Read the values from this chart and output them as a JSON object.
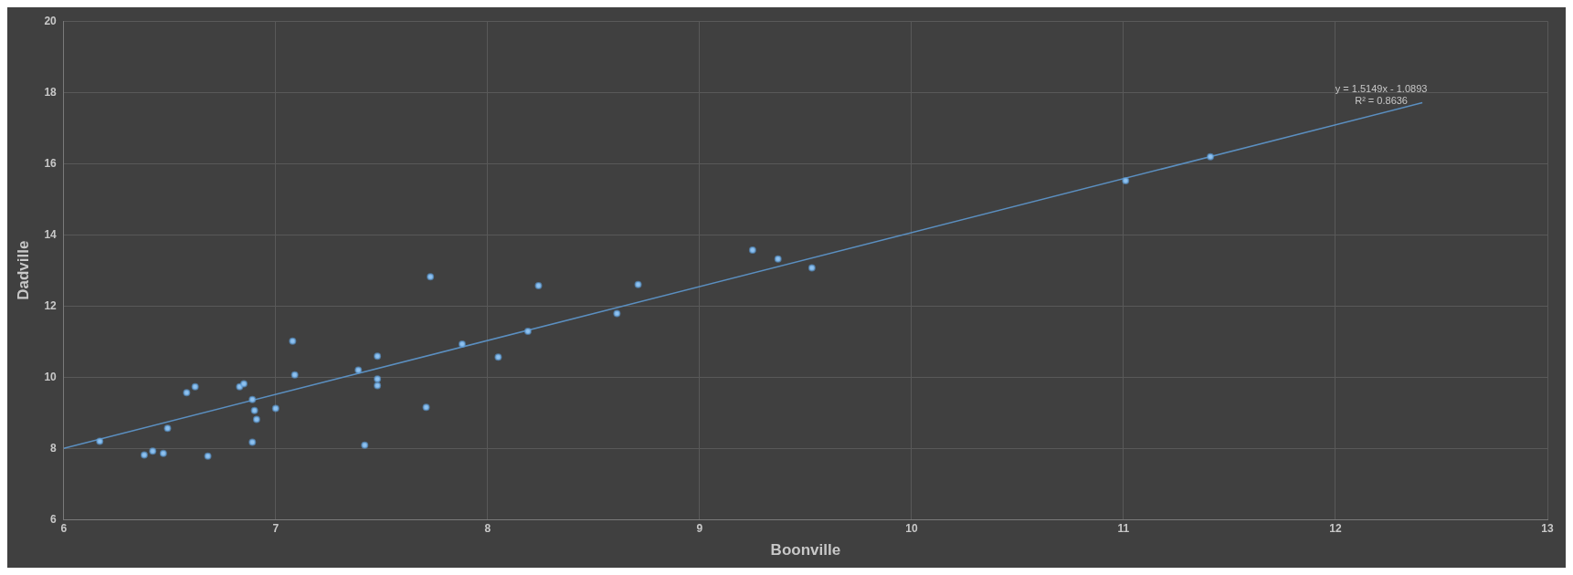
{
  "chart_data": {
    "type": "scatter",
    "xlabel": "Boonville",
    "ylabel": "Dadville",
    "xlim": [
      6,
      13
    ],
    "xticks": [
      6,
      7,
      8,
      9,
      10,
      11,
      12,
      13
    ],
    "ylim": [
      6,
      20
    ],
    "yticks": [
      6,
      8,
      10,
      12,
      14,
      16,
      18,
      20
    ],
    "grid": true,
    "legend": false,
    "marker": "circle",
    "annotations": [
      "y = 1.5149x - 1.0893",
      "R² = 0.8636"
    ],
    "series": [
      {
        "type": "scatter",
        "color": "#8fc1ee",
        "x": [
          6.17,
          6.38,
          6.42,
          6.47,
          6.49,
          6.58,
          6.62,
          6.68,
          6.83,
          6.85,
          6.89,
          6.9,
          6.91,
          6.89,
          7.0,
          7.08,
          7.09,
          7.39,
          7.42,
          7.48,
          7.48,
          7.48,
          7.71,
          7.73,
          7.88,
          8.05,
          8.19,
          8.24,
          8.61,
          8.71,
          9.25,
          9.37,
          9.53,
          11.01,
          11.41
        ],
        "values": [
          8.2,
          7.81,
          7.92,
          7.86,
          8.56,
          9.56,
          9.73,
          7.78,
          9.73,
          9.81,
          9.37,
          9.06,
          8.81,
          8.17,
          9.12,
          11.01,
          10.06,
          10.2,
          8.09,
          10.59,
          9.95,
          9.76,
          9.15,
          12.82,
          10.93,
          10.56,
          11.29,
          12.57,
          11.79,
          12.6,
          13.57,
          13.32,
          13.07,
          15.52,
          16.19
        ]
      },
      {
        "type": "line",
        "color": "#5b8fc0",
        "marker": "none",
        "x": [
          6,
          12.41
        ],
        "values": [
          8.0,
          17.71
        ]
      }
    ]
  }
}
